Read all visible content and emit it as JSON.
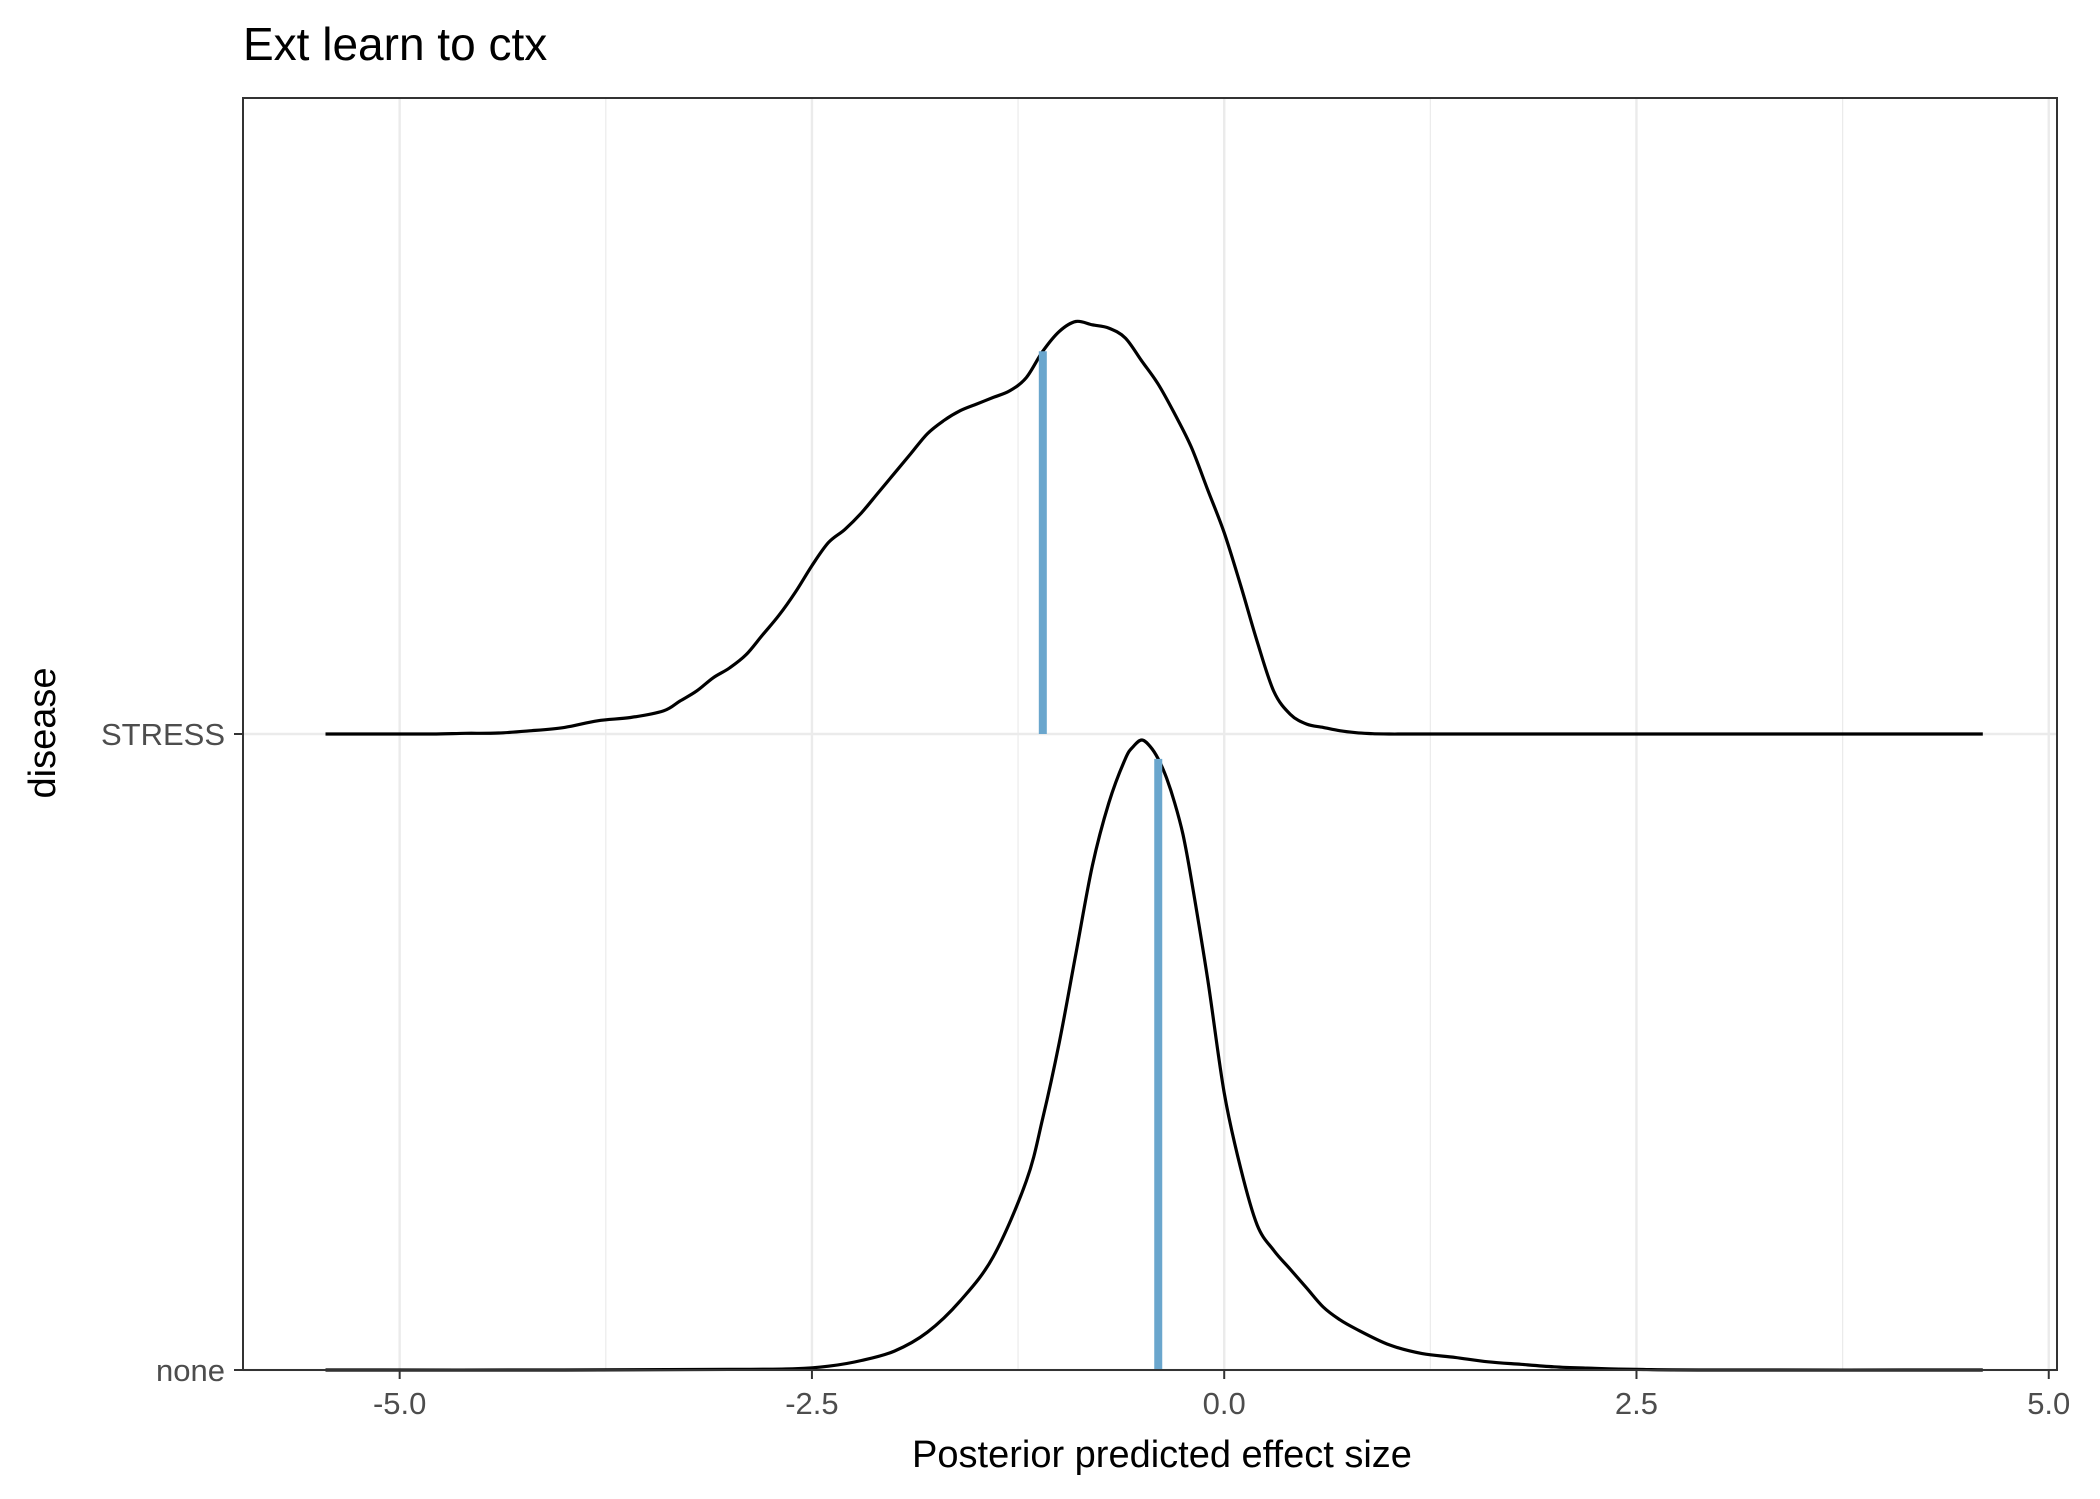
{
  "chart_data": {
    "type": "ridgeline-density",
    "title": "Ext learn to ctx",
    "xlabel": "Posterior predicted effect size",
    "ylabel": "disease",
    "xlim": [
      -5.95,
      5.05
    ],
    "x_ticks": [
      -5.0,
      -2.5,
      0.0,
      2.5,
      5.0
    ],
    "x_tick_labels": [
      "-5.0",
      "-2.5",
      "0.0",
      "2.5",
      "5.0"
    ],
    "categories": [
      "none",
      "STRESS"
    ],
    "grid": true,
    "colors": {
      "median_line": "#6aa6cd",
      "density_line": "#000000",
      "grid": "#ebebeb",
      "panel_border": "#333333"
    },
    "series": [
      {
        "name": "STRESS",
        "median": -1.1,
        "density_x": [
          -5.45,
          -5.2,
          -5.0,
          -4.8,
          -4.6,
          -4.4,
          -4.2,
          -4.0,
          -3.8,
          -3.6,
          -3.4,
          -3.3,
          -3.2,
          -3.1,
          -3.0,
          -2.9,
          -2.8,
          -2.7,
          -2.6,
          -2.5,
          -2.4,
          -2.3,
          -2.2,
          -2.1,
          -2.0,
          -1.9,
          -1.8,
          -1.7,
          -1.6,
          -1.5,
          -1.4,
          -1.3,
          -1.2,
          -1.1,
          -1.0,
          -0.9,
          -0.8,
          -0.7,
          -0.6,
          -0.5,
          -0.4,
          -0.3,
          -0.2,
          -0.1,
          0.0,
          0.1,
          0.2,
          0.3,
          0.4,
          0.5,
          0.6,
          0.7,
          0.8,
          0.9,
          1.0,
          1.1,
          1.2,
          1.3,
          1.4,
          1.5,
          1.7,
          2.0,
          2.5,
          3.0,
          3.5,
          4.0,
          4.6
        ],
        "density_y": [
          0.0,
          0.0,
          0.0,
          0.0,
          0.002,
          0.003,
          0.01,
          0.02,
          0.04,
          0.05,
          0.07,
          0.1,
          0.13,
          0.17,
          0.2,
          0.24,
          0.3,
          0.36,
          0.43,
          0.51,
          0.58,
          0.62,
          0.67,
          0.73,
          0.79,
          0.85,
          0.91,
          0.95,
          0.98,
          1.0,
          1.02,
          1.04,
          1.08,
          1.16,
          1.22,
          1.25,
          1.24,
          1.23,
          1.2,
          1.13,
          1.06,
          0.97,
          0.87,
          0.74,
          0.61,
          0.45,
          0.28,
          0.13,
          0.06,
          0.03,
          0.02,
          0.01,
          0.004,
          0.001,
          0.0,
          0.0,
          0.0,
          0.0,
          0.0,
          0.0,
          0.0,
          0.0,
          0.0,
          0.0,
          0.0,
          0.0,
          0.0
        ]
      },
      {
        "name": "none",
        "median": -0.4,
        "density_x": [
          -5.45,
          -4.0,
          -3.0,
          -2.6,
          -2.4,
          -2.2,
          -2.0,
          -1.8,
          -1.6,
          -1.4,
          -1.2,
          -1.1,
          -1.0,
          -0.9,
          -0.8,
          -0.7,
          -0.6,
          -0.55,
          -0.5,
          -0.45,
          -0.4,
          -0.35,
          -0.3,
          -0.25,
          -0.2,
          -0.1,
          0.0,
          0.1,
          0.2,
          0.3,
          0.4,
          0.5,
          0.6,
          0.7,
          0.8,
          1.0,
          1.2,
          1.4,
          1.6,
          1.8,
          2.0,
          2.2,
          2.5,
          3.0,
          4.6
        ],
        "density_y": [
          0.0,
          0.0,
          0.001,
          0.002,
          0.006,
          0.015,
          0.03,
          0.06,
          0.11,
          0.18,
          0.3,
          0.4,
          0.52,
          0.66,
          0.8,
          0.9,
          0.97,
          0.99,
          1.0,
          0.99,
          0.97,
          0.94,
          0.9,
          0.85,
          0.78,
          0.62,
          0.44,
          0.32,
          0.23,
          0.19,
          0.16,
          0.13,
          0.1,
          0.08,
          0.065,
          0.04,
          0.026,
          0.02,
          0.013,
          0.009,
          0.005,
          0.003,
          0.001,
          0.0,
          0.0
        ]
      }
    ]
  }
}
